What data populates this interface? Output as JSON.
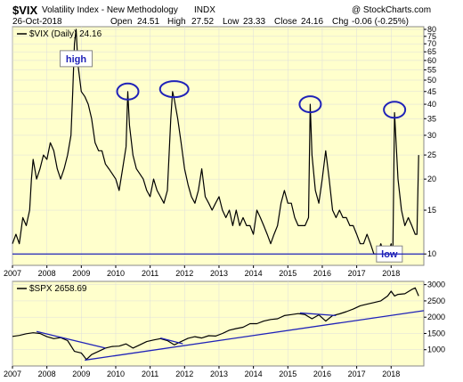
{
  "header": {
    "symbol": "$VIX",
    "name": "Volatility Index - New Methodology",
    "exchange": "INDX",
    "copyright": "@ StockCharts.com",
    "date": "26-Oct-2018",
    "open_label": "Open",
    "open": "24.51",
    "high_label": "High",
    "high": "27.52",
    "low_label": "Low",
    "low": "23.33",
    "close_label": "Close",
    "close": "24.16",
    "chg_label": "Chg",
    "chg": "-0.06 (-0.25%)"
  },
  "colors": {
    "panel_bg": "#ffffcc",
    "price_line": "#000000",
    "annotation": "#1f22b8",
    "axis_text": "#000000"
  },
  "chart_data": [
    {
      "type": "line",
      "legend": "$VIX (Daily) 24.16",
      "scale": "log",
      "ylim": [
        9,
        82
      ],
      "y_ticks": [
        "80",
        "75",
        "70",
        "65",
        "60",
        "55",
        "50",
        "45",
        "40",
        "35",
        "30",
        "25",
        "20",
        "15",
        "10"
      ],
      "x_ticks": [
        "2007",
        "2008",
        "2009",
        "2010",
        "2011",
        "2012",
        "2013",
        "2014",
        "2015",
        "2016",
        "2017",
        "2018"
      ],
      "annotations": [
        {
          "type": "label",
          "text": "high",
          "x": 2008.85,
          "y": 61
        },
        {
          "type": "label",
          "text": "low",
          "x": 2017.95,
          "y": 10
        },
        {
          "type": "hline",
          "y": 10
        },
        {
          "type": "ellipse",
          "x": 2010.35,
          "y": 45
        },
        {
          "type": "ellipse",
          "x": 2011.7,
          "y": 46
        },
        {
          "type": "ellipse",
          "x": 2015.65,
          "y": 40
        },
        {
          "type": "ellipse",
          "x": 2018.1,
          "y": 38
        }
      ],
      "series": [
        {
          "x": [
            2007.0,
            2007.1,
            2007.2,
            2007.3,
            2007.4,
            2007.5,
            2007.55,
            2007.6,
            2007.7,
            2007.8,
            2007.9,
            2008.0,
            2008.1,
            2008.2,
            2008.3,
            2008.4,
            2008.5,
            2008.6,
            2008.7,
            2008.75,
            2008.8,
            2008.85,
            2008.9,
            2009.0,
            2009.1,
            2009.2,
            2009.3,
            2009.4,
            2009.5,
            2009.6,
            2009.7,
            2009.8,
            2009.9,
            2010.0,
            2010.1,
            2010.2,
            2010.3,
            2010.35,
            2010.4,
            2010.5,
            2010.6,
            2010.7,
            2010.8,
            2010.9,
            2011.0,
            2011.1,
            2011.2,
            2011.3,
            2011.4,
            2011.5,
            2011.6,
            2011.65,
            2011.7,
            2011.8,
            2011.9,
            2012.0,
            2012.1,
            2012.2,
            2012.3,
            2012.4,
            2012.5,
            2012.6,
            2012.7,
            2012.8,
            2012.9,
            2013.0,
            2013.1,
            2013.2,
            2013.3,
            2013.4,
            2013.5,
            2013.6,
            2013.7,
            2013.8,
            2013.9,
            2014.0,
            2014.1,
            2014.2,
            2014.3,
            2014.4,
            2014.5,
            2014.6,
            2014.7,
            2014.8,
            2014.9,
            2015.0,
            2015.1,
            2015.2,
            2015.3,
            2015.4,
            2015.5,
            2015.6,
            2015.65,
            2015.7,
            2015.8,
            2015.9,
            2016.0,
            2016.1,
            2016.2,
            2016.3,
            2016.4,
            2016.5,
            2016.6,
            2016.7,
            2016.8,
            2016.9,
            2017.0,
            2017.1,
            2017.2,
            2017.3,
            2017.4,
            2017.5,
            2017.6,
            2017.7,
            2017.8,
            2017.9,
            2018.0,
            2018.05,
            2018.1,
            2018.2,
            2018.3,
            2018.4,
            2018.5,
            2018.6,
            2018.7,
            2018.75,
            2018.8
          ],
          "y": [
            11,
            12,
            11,
            14,
            13,
            15,
            20,
            24,
            20,
            22,
            25,
            24,
            28,
            26,
            22,
            20,
            22,
            25,
            30,
            45,
            70,
            80,
            58,
            45,
            43,
            40,
            35,
            28,
            26,
            26,
            23,
            22,
            21,
            20,
            18,
            22,
            27,
            45,
            33,
            25,
            22,
            21,
            20,
            18,
            17,
            20,
            18,
            17,
            16,
            18,
            35,
            45,
            42,
            35,
            28,
            22,
            19,
            17,
            16,
            18,
            22,
            17,
            16,
            15,
            16,
            17,
            15,
            14,
            15,
            13,
            15,
            13,
            14,
            13,
            13,
            12,
            15,
            14,
            13,
            12,
            11,
            12,
            13,
            16,
            18,
            16,
            16,
            14,
            13,
            13,
            13,
            14,
            40,
            25,
            18,
            16,
            20,
            26,
            20,
            15,
            14,
            15,
            14,
            14,
            13,
            13,
            12,
            11,
            11,
            12,
            11,
            10,
            10,
            11,
            10,
            10,
            11,
            10,
            37,
            20,
            15,
            13,
            14,
            13,
            12,
            12,
            25
          ]
        }
      ]
    },
    {
      "type": "line",
      "legend": "$SPX 2658.69",
      "ylim": [
        500,
        3100
      ],
      "y_ticks": [
        "3000",
        "2500",
        "2000",
        "1500",
        "1000"
      ],
      "x_ticks": [
        "2007",
        "2008",
        "2009",
        "2010",
        "2011",
        "2012",
        "2013",
        "2014",
        "2015",
        "2016",
        "2017",
        "2018"
      ],
      "trendlines": [
        {
          "x": [
            2007.7,
            2009.7
          ],
          "y": [
            1560,
            1050
          ]
        },
        {
          "x": [
            2011.3,
            2011.95
          ],
          "y": [
            1360,
            1180
          ]
        },
        {
          "x": [
            2015.35,
            2016.4
          ],
          "y": [
            2130,
            2050
          ]
        },
        {
          "x": [
            2009.1,
            2018.95
          ],
          "y": [
            680,
            2200
          ]
        }
      ],
      "series": [
        {
          "x": [
            2007.0,
            2007.2,
            2007.4,
            2007.6,
            2007.8,
            2008.0,
            2008.2,
            2008.4,
            2008.6,
            2008.8,
            2009.0,
            2009.15,
            2009.3,
            2009.5,
            2009.7,
            2009.9,
            2010.1,
            2010.3,
            2010.5,
            2010.7,
            2010.9,
            2011.1,
            2011.3,
            2011.5,
            2011.7,
            2011.9,
            2012.1,
            2012.3,
            2012.5,
            2012.7,
            2012.9,
            2013.1,
            2013.3,
            2013.5,
            2013.7,
            2013.9,
            2014.1,
            2014.3,
            2014.5,
            2014.7,
            2014.9,
            2015.1,
            2015.3,
            2015.5,
            2015.7,
            2015.9,
            2016.1,
            2016.3,
            2016.5,
            2016.7,
            2016.9,
            2017.1,
            2017.3,
            2017.5,
            2017.7,
            2017.9,
            2018.0,
            2018.1,
            2018.2,
            2018.4,
            2018.6,
            2018.7,
            2018.8
          ],
          "y": [
            1410,
            1440,
            1490,
            1520,
            1500,
            1400,
            1340,
            1370,
            1280,
            950,
            900,
            700,
            850,
            950,
            1050,
            1100,
            1110,
            1180,
            1050,
            1150,
            1250,
            1300,
            1340,
            1280,
            1150,
            1250,
            1350,
            1400,
            1360,
            1430,
            1420,
            1500,
            1600,
            1650,
            1690,
            1800,
            1800,
            1880,
            1930,
            1950,
            2050,
            2080,
            2110,
            2080,
            1950,
            2070,
            1880,
            2050,
            2100,
            2170,
            2250,
            2350,
            2400,
            2450,
            2500,
            2650,
            2800,
            2650,
            2700,
            2720,
            2850,
            2900,
            2650
          ]
        }
      ]
    }
  ]
}
